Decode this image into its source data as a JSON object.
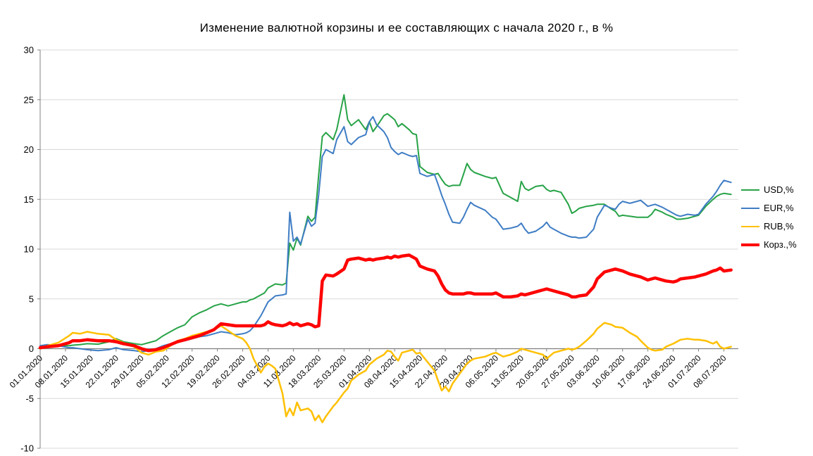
{
  "chart_data": {
    "type": "line",
    "title": "Изменение валютной корзины и ее составляющих с начала 2020 г., в %",
    "ylim": [
      -10,
      30
    ],
    "y_ticks": [
      30,
      25,
      20,
      15,
      10,
      5,
      0,
      -5,
      -10
    ],
    "x_range": [
      0,
      193
    ],
    "x_unit": "days since 01.01.2020",
    "grid": "horizontal",
    "grid_color": "#D9D9D9",
    "axis_color": "#808080",
    "text_color": "#000000",
    "legend_position": "right",
    "x_tick_days": [
      0,
      7,
      14,
      21,
      28,
      35,
      42,
      49,
      56,
      63,
      70,
      77,
      84,
      91,
      98,
      105,
      112,
      119,
      126,
      133,
      140,
      147,
      154,
      161,
      168,
      175,
      182,
      189
    ],
    "x_tick_labels": [
      "01.01.2020",
      "08.01.2020",
      "15.01.2020",
      "22.01.2020",
      "29.01.2020",
      "05.02.2020",
      "12.02.2020",
      "19.02.2020",
      "26.02.2020",
      "04.03.2020",
      "11.03.2020",
      "18.03.2020",
      "25.03.2020",
      "01.04.2020",
      "08.04.2020",
      "15.04.2020",
      "22.04.2020",
      "29.04.2020",
      "06.05.2020",
      "13.05.2020",
      "20.05.2020",
      "27.05.2020",
      "03.06.2020",
      "10.06.2020",
      "17.06.2020",
      "24.06.2020",
      "01.07.2020",
      "08.07.2020"
    ],
    "x": [
      0,
      2,
      5,
      8,
      9,
      11,
      13,
      16,
      19,
      21,
      23,
      26,
      28,
      30,
      32,
      34,
      36,
      38,
      40,
      42,
      44,
      46,
      48,
      50,
      52,
      54,
      56,
      57,
      58,
      59,
      61,
      62,
      63,
      64,
      65,
      67,
      68,
      69,
      70,
      71,
      72,
      74,
      75,
      76,
      77,
      78,
      79,
      81,
      82,
      84,
      85,
      86,
      88,
      90,
      91,
      92,
      93,
      95,
      96,
      97,
      98,
      99,
      100,
      102,
      103,
      104,
      105,
      107,
      109,
      110,
      111,
      112,
      113,
      114,
      116,
      117,
      118,
      119,
      120,
      123,
      125,
      126,
      128,
      130,
      132,
      133,
      134,
      135,
      137,
      139,
      140,
      141,
      142,
      144,
      146,
      147,
      148,
      149,
      151,
      153,
      154,
      156,
      158,
      159,
      160,
      161,
      163,
      165,
      166,
      168,
      169,
      170,
      172,
      173,
      175,
      176,
      177,
      179,
      181,
      182,
      184,
      186,
      187,
      188,
      189,
      191
    ],
    "series": [
      {
        "id": "usd",
        "name": "USD,%",
        "color": "#27A347",
        "width": 2,
        "values": [
          0.0,
          0.2,
          0.3,
          0.3,
          0.35,
          0.4,
          0.5,
          0.45,
          0.7,
          1.0,
          0.7,
          0.5,
          0.4,
          0.6,
          0.8,
          1.3,
          1.7,
          2.1,
          2.4,
          3.2,
          3.6,
          3.9,
          4.3,
          4.5,
          4.3,
          4.5,
          4.7,
          4.7,
          4.9,
          5.0,
          5.4,
          5.6,
          6.1,
          6.3,
          6.5,
          6.4,
          6.6,
          10.6,
          9.9,
          11.1,
          10.4,
          13.3,
          12.8,
          13.2,
          17.5,
          21.3,
          21.7,
          21.0,
          22.0,
          25.5,
          23.0,
          22.4,
          23.0,
          22.0,
          22.8,
          21.8,
          22.3,
          23.4,
          23.6,
          23.3,
          23.0,
          22.3,
          22.6,
          22.0,
          21.6,
          21.5,
          18.3,
          17.7,
          17.5,
          17.6,
          17.0,
          16.5,
          16.3,
          16.4,
          16.4,
          17.5,
          18.6,
          18.0,
          17.7,
          17.3,
          17.1,
          17.2,
          15.6,
          15.2,
          14.8,
          16.8,
          16.1,
          15.9,
          16.3,
          16.4,
          16.0,
          15.8,
          15.9,
          15.7,
          14.5,
          13.6,
          13.8,
          14.1,
          14.3,
          14.4,
          14.5,
          14.5,
          14.0,
          13.8,
          13.3,
          13.4,
          13.3,
          13.2,
          13.2,
          13.2,
          13.5,
          14.0,
          13.7,
          13.5,
          13.2,
          13.0,
          13.0,
          13.1,
          13.3,
          13.4,
          14.3,
          15.0,
          15.3,
          15.5,
          15.6,
          15.5
        ]
      },
      {
        "id": "eur",
        "name": "EUR,%",
        "color": "#3F7DC4",
        "width": 2,
        "values": [
          0.3,
          0.4,
          0.3,
          0.1,
          0.1,
          0.0,
          -0.1,
          -0.2,
          -0.1,
          0.1,
          -0.1,
          -0.2,
          -0.3,
          -0.2,
          0.0,
          0.3,
          0.5,
          0.7,
          0.8,
          1.0,
          1.2,
          1.3,
          1.5,
          1.7,
          1.6,
          1.4,
          1.5,
          1.6,
          1.8,
          2.2,
          3.3,
          4.0,
          4.7,
          5.0,
          5.3,
          5.4,
          5.5,
          13.7,
          10.8,
          11.2,
          10.5,
          13.0,
          12.3,
          12.6,
          15.5,
          19.3,
          20.0,
          19.6,
          21.0,
          22.3,
          20.8,
          20.5,
          21.2,
          21.5,
          22.8,
          23.3,
          22.5,
          21.8,
          21.2,
          20.2,
          19.8,
          19.5,
          19.7,
          19.4,
          19.3,
          19.4,
          17.6,
          17.3,
          17.5,
          16.5,
          15.4,
          14.5,
          13.5,
          12.7,
          12.6,
          13.2,
          14.0,
          14.7,
          14.4,
          13.9,
          13.2,
          13.0,
          12.0,
          12.1,
          12.3,
          12.6,
          12.0,
          11.6,
          11.8,
          12.3,
          12.7,
          12.2,
          12.0,
          11.6,
          11.3,
          11.2,
          11.2,
          11.1,
          11.2,
          12.0,
          13.2,
          14.4,
          14.1,
          14.0,
          14.5,
          14.8,
          14.6,
          14.8,
          14.9,
          14.3,
          14.4,
          14.5,
          14.2,
          14.0,
          13.6,
          13.4,
          13.3,
          13.5,
          13.4,
          13.5,
          14.5,
          15.3,
          15.8,
          16.4,
          16.9,
          16.7
        ]
      },
      {
        "id": "rub",
        "name": "RUB,%",
        "color": "#FFC000",
        "width": 2.5,
        "values": [
          0.0,
          0.3,
          0.6,
          1.3,
          1.6,
          1.5,
          1.7,
          1.5,
          1.4,
          0.9,
          0.6,
          0.2,
          -0.4,
          -0.6,
          -0.3,
          -0.2,
          0.3,
          0.8,
          1.0,
          1.3,
          1.5,
          1.7,
          1.9,
          2.3,
          1.8,
          1.3,
          1.0,
          0.6,
          0.0,
          -1.0,
          -2.4,
          -1.8,
          -1.5,
          -1.7,
          -2.0,
          -4.5,
          -6.8,
          -6.0,
          -6.7,
          -5.4,
          -6.2,
          -6.0,
          -6.3,
          -7.2,
          -6.7,
          -7.4,
          -6.8,
          -5.8,
          -5.4,
          -4.4,
          -4.0,
          -3.2,
          -2.6,
          -2.2,
          -1.6,
          -1.3,
          -1.0,
          -0.6,
          -0.2,
          -0.3,
          -0.8,
          -1.2,
          -0.4,
          -0.2,
          -0.1,
          -0.5,
          -0.4,
          -1.3,
          -2.2,
          -3.2,
          -4.2,
          -3.8,
          -4.3,
          -3.5,
          -2.5,
          -2.0,
          -1.5,
          -1.2,
          -1.0,
          -0.8,
          -0.5,
          -0.4,
          -0.8,
          -0.6,
          -0.3,
          0.0,
          -0.1,
          -0.2,
          -0.4,
          -0.6,
          -1.0,
          -0.7,
          -0.4,
          -0.2,
          0.0,
          -0.1,
          0.0,
          0.2,
          0.8,
          1.5,
          2.0,
          2.6,
          2.4,
          2.2,
          2.15,
          2.1,
          1.6,
          1.2,
          0.8,
          0.1,
          -0.1,
          -0.2,
          -0.1,
          0.2,
          0.5,
          0.7,
          0.9,
          1.0,
          0.9,
          0.9,
          0.8,
          0.5,
          0.7,
          0.2,
          0.0,
          0.2
        ]
      },
      {
        "id": "korz",
        "name": "Корз.,%",
        "color": "#FF0000",
        "width": 4.5,
        "values": [
          0.1,
          0.2,
          0.3,
          0.6,
          0.8,
          0.8,
          0.9,
          0.8,
          0.8,
          0.7,
          0.5,
          0.3,
          0.0,
          -0.2,
          -0.1,
          0.1,
          0.4,
          0.7,
          0.9,
          1.1,
          1.3,
          1.6,
          1.9,
          2.5,
          2.4,
          2.3,
          2.3,
          2.3,
          2.3,
          2.3,
          2.3,
          2.4,
          2.7,
          2.5,
          2.4,
          2.3,
          2.4,
          2.6,
          2.4,
          2.5,
          2.3,
          2.5,
          2.4,
          2.2,
          2.3,
          6.8,
          7.4,
          7.3,
          7.5,
          8.0,
          8.9,
          9.0,
          9.1,
          8.9,
          9.0,
          8.9,
          9.0,
          9.1,
          9.2,
          9.1,
          9.3,
          9.2,
          9.3,
          9.4,
          9.2,
          9.0,
          8.3,
          8.0,
          7.8,
          7.3,
          6.5,
          5.9,
          5.6,
          5.5,
          5.5,
          5.5,
          5.6,
          5.6,
          5.5,
          5.5,
          5.5,
          5.6,
          5.2,
          5.2,
          5.3,
          5.5,
          5.4,
          5.5,
          5.7,
          5.9,
          6.0,
          5.9,
          5.8,
          5.6,
          5.4,
          5.2,
          5.2,
          5.3,
          5.4,
          6.2,
          7.0,
          7.7,
          7.9,
          8.0,
          7.9,
          7.8,
          7.5,
          7.3,
          7.2,
          6.9,
          7.0,
          7.1,
          6.9,
          6.8,
          6.7,
          6.8,
          7.0,
          7.1,
          7.2,
          7.3,
          7.5,
          7.8,
          7.9,
          8.1,
          7.8,
          7.9
        ]
      }
    ]
  }
}
